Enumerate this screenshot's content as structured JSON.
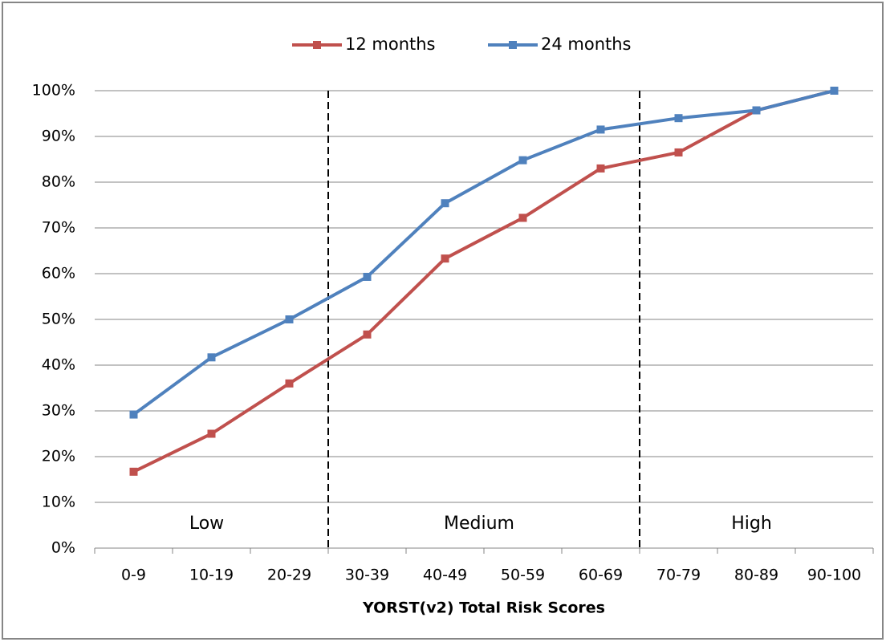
{
  "chart_data": {
    "type": "line",
    "x_label": "YORST(v2) Total Risk Scores",
    "categories": [
      "0-9",
      "10-19",
      "20-29",
      "30-39",
      "40-49",
      "50-59",
      "60-69",
      "70-79",
      "80-89",
      "90-100"
    ],
    "series": [
      {
        "name": "12 months",
        "color": "#c0504d",
        "values": [
          16.7,
          25,
          36,
          46.7,
          63.3,
          72.2,
          83,
          86.5,
          95.7,
          100
        ]
      },
      {
        "name": "24 months",
        "color": "#4f81bd",
        "values": [
          29.2,
          41.7,
          50,
          59.3,
          75.4,
          84.8,
          91.5,
          94,
          95.7,
          100
        ]
      }
    ],
    "ylim": [
      0,
      100
    ],
    "yticks": [
      {
        "value": 0,
        "label": "0%"
      },
      {
        "value": 10,
        "label": "10%"
      },
      {
        "value": 20,
        "label": "20%"
      },
      {
        "value": 30,
        "label": "30%"
      },
      {
        "value": 40,
        "label": "40%"
      },
      {
        "value": 50,
        "label": "50%"
      },
      {
        "value": 60,
        "label": "60%"
      },
      {
        "value": 70,
        "label": "70%"
      },
      {
        "value": 80,
        "label": "80%"
      },
      {
        "value": 90,
        "label": "90%"
      },
      {
        "value": 100,
        "label": "100%"
      }
    ],
    "grid": true,
    "legend": "top",
    "annotations": [
      "Low",
      "Medium",
      "High"
    ]
  }
}
